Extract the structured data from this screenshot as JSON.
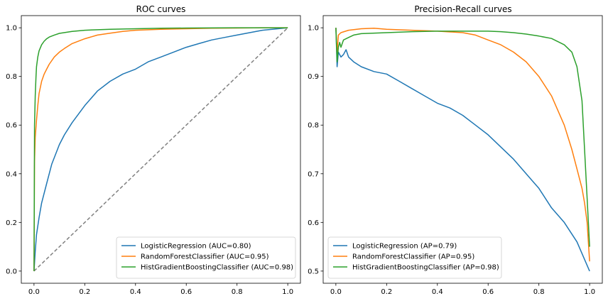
{
  "chart_data": [
    {
      "type": "line",
      "title": "ROC curves",
      "xlabel": "",
      "ylabel": "",
      "xlim": [
        -0.05,
        1.05
      ],
      "ylim": [
        -0.05,
        1.05
      ],
      "xticks": [
        0.0,
        0.2,
        0.4,
        0.6,
        0.8,
        1.0
      ],
      "yticks": [
        0.0,
        0.2,
        0.4,
        0.6,
        0.8,
        1.0
      ],
      "xtick_labels": [
        "0.0",
        "0.2",
        "0.4",
        "0.6",
        "0.8",
        "1.0"
      ],
      "ytick_labels": [
        "0.0",
        "0.2",
        "0.4",
        "0.6",
        "0.8",
        "1.0"
      ],
      "grid": false,
      "legend_position": "lower-right",
      "reference_line": {
        "x": [
          0,
          1
        ],
        "y": [
          0,
          1
        ],
        "style": "dashed",
        "color": "#808080"
      },
      "series": [
        {
          "name": "LogisticRegression (AUC=0.80)",
          "color": "#1f77b4",
          "x": [
            0,
            0.005,
            0.01,
            0.02,
            0.03,
            0.05,
            0.07,
            0.1,
            0.12,
            0.15,
            0.2,
            0.25,
            0.3,
            0.35,
            0.4,
            0.45,
            0.5,
            0.55,
            0.6,
            0.65,
            0.7,
            0.75,
            0.8,
            0.85,
            0.9,
            0.95,
            1.0
          ],
          "y": [
            0,
            0.08,
            0.15,
            0.22,
            0.28,
            0.36,
            0.44,
            0.52,
            0.56,
            0.61,
            0.68,
            0.74,
            0.78,
            0.81,
            0.83,
            0.86,
            0.88,
            0.9,
            0.92,
            0.935,
            0.95,
            0.96,
            0.97,
            0.98,
            0.99,
            0.995,
            1.0
          ]
        },
        {
          "name": "RandomForestClassifier (AUC=0.95)",
          "color": "#ff7f0e",
          "x": [
            0,
            0.002,
            0.005,
            0.01,
            0.015,
            0.02,
            0.03,
            0.04,
            0.05,
            0.06,
            0.08,
            0.1,
            0.12,
            0.15,
            0.2,
            0.25,
            0.3,
            0.35,
            0.4,
            0.5,
            0.6,
            0.7,
            0.8,
            0.9,
            1.0
          ],
          "y": [
            0,
            0.45,
            0.55,
            0.62,
            0.68,
            0.73,
            0.78,
            0.81,
            0.83,
            0.85,
            0.88,
            0.9,
            0.915,
            0.935,
            0.955,
            0.97,
            0.978,
            0.985,
            0.99,
            0.994,
            0.996,
            0.998,
            0.999,
            1.0,
            1.0
          ]
        },
        {
          "name": "HistGradientBoostingClassifier (AUC=0.98)",
          "color": "#2ca02c",
          "x": [
            0,
            0.002,
            0.005,
            0.008,
            0.01,
            0.015,
            0.02,
            0.03,
            0.04,
            0.05,
            0.06,
            0.08,
            0.1,
            0.15,
            0.2,
            0.3,
            0.4,
            0.5,
            0.6,
            0.8,
            1.0
          ],
          "y": [
            0,
            0.6,
            0.72,
            0.8,
            0.84,
            0.88,
            0.905,
            0.93,
            0.945,
            0.955,
            0.962,
            0.97,
            0.977,
            0.985,
            0.99,
            0.994,
            0.996,
            0.998,
            0.999,
            1.0,
            1.0
          ]
        }
      ]
    },
    {
      "type": "line",
      "title": "Precision-Recall curves",
      "xlabel": "",
      "ylabel": "",
      "xlim": [
        -0.05,
        1.05
      ],
      "ylim": [
        0.475,
        1.025
      ],
      "xticks": [
        0.0,
        0.2,
        0.4,
        0.6,
        0.8,
        1.0
      ],
      "yticks": [
        0.5,
        0.6,
        0.7,
        0.8,
        0.9,
        1.0
      ],
      "xtick_labels": [
        "0.0",
        "0.2",
        "0.4",
        "0.6",
        "0.8",
        "1.0"
      ],
      "ytick_labels": [
        "0.5",
        "0.6",
        "0.7",
        "0.8",
        "0.9",
        "1.0"
      ],
      "grid": false,
      "legend_position": "lower-left",
      "series": [
        {
          "name": "LogisticRegression (AP=0.79)",
          "color": "#1f77b4",
          "x": [
            0.0,
            0.005,
            0.01,
            0.02,
            0.03,
            0.04,
            0.05,
            0.07,
            0.1,
            0.15,
            0.2,
            0.25,
            0.3,
            0.35,
            0.4,
            0.45,
            0.5,
            0.55,
            0.6,
            0.65,
            0.7,
            0.75,
            0.8,
            0.85,
            0.9,
            0.95,
            1.0
          ],
          "y": [
            1.0,
            0.92,
            0.95,
            0.94,
            0.945,
            0.955,
            0.94,
            0.93,
            0.92,
            0.91,
            0.905,
            0.89,
            0.875,
            0.86,
            0.845,
            0.835,
            0.82,
            0.8,
            0.78,
            0.755,
            0.73,
            0.7,
            0.67,
            0.63,
            0.6,
            0.56,
            0.5
          ]
        },
        {
          "name": "RandomForestClassifier (AP=0.95)",
          "color": "#ff7f0e",
          "x": [
            0.0,
            0.005,
            0.01,
            0.02,
            0.05,
            0.1,
            0.15,
            0.2,
            0.3,
            0.4,
            0.5,
            0.55,
            0.6,
            0.65,
            0.7,
            0.75,
            0.8,
            0.85,
            0.9,
            0.93,
            0.95,
            0.97,
            0.98,
            0.99,
            1.0
          ],
          "y": [
            1.0,
            0.95,
            0.985,
            0.99,
            0.995,
            0.998,
            0.999,
            0.997,
            0.995,
            0.993,
            0.99,
            0.985,
            0.975,
            0.965,
            0.95,
            0.93,
            0.9,
            0.86,
            0.8,
            0.75,
            0.71,
            0.67,
            0.64,
            0.6,
            0.52
          ]
        },
        {
          "name": "HistGradientBoostingClassifier (AP=0.98)",
          "color": "#2ca02c",
          "x": [
            0.0,
            0.005,
            0.01,
            0.015,
            0.02,
            0.03,
            0.05,
            0.07,
            0.1,
            0.2,
            0.3,
            0.4,
            0.5,
            0.6,
            0.65,
            0.7,
            0.75,
            0.8,
            0.85,
            0.9,
            0.93,
            0.95,
            0.97,
            0.98,
            0.99,
            1.0
          ],
          "y": [
            1.0,
            0.93,
            0.96,
            0.97,
            0.96,
            0.975,
            0.98,
            0.985,
            0.988,
            0.99,
            0.992,
            0.993,
            0.993,
            0.993,
            0.992,
            0.99,
            0.987,
            0.983,
            0.978,
            0.965,
            0.95,
            0.92,
            0.85,
            0.75,
            0.65,
            0.55
          ]
        }
      ]
    }
  ]
}
